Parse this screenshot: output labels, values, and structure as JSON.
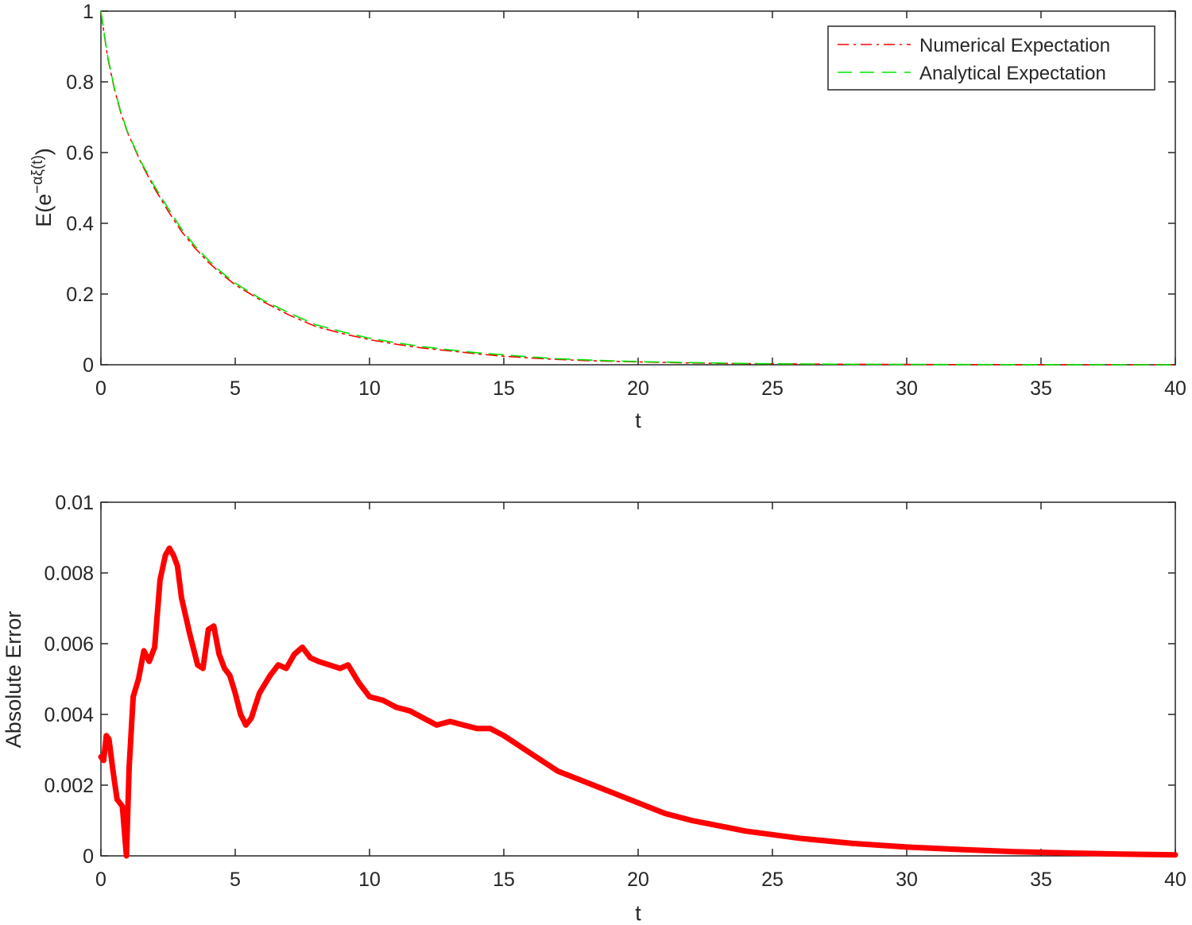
{
  "chart_data": [
    {
      "type": "line",
      "xlabel": "t",
      "ylabel_main": "E(e",
      "ylabel_exponent": "−αξ(t)",
      "ylabel_close": ")",
      "xlim": [
        0,
        40
      ],
      "ylim": [
        0,
        1
      ],
      "xticks": [
        0,
        5,
        10,
        15,
        20,
        25,
        30,
        35,
        40
      ],
      "xtick_labels": [
        "0",
        "5",
        "10",
        "15",
        "20",
        "25",
        "30",
        "35",
        "40"
      ],
      "yticks": [
        0,
        0.2,
        0.4,
        0.6,
        0.8,
        1
      ],
      "ytick_labels": [
        "0",
        "0.2",
        "0.4",
        "0.6",
        "0.8",
        "1"
      ],
      "grid": false,
      "legend_position": "top-right",
      "series": [
        {
          "name": "Numerical Expectation",
          "color": "#ff0000",
          "style": "dash-dot",
          "x": [
            0,
            0.25,
            0.5,
            0.75,
            1,
            1.5,
            2,
            2.5,
            3,
            3.5,
            4,
            4.5,
            5,
            6,
            7,
            8,
            9,
            10,
            11,
            12,
            13,
            14,
            15,
            16,
            17,
            18,
            19,
            20,
            22,
            24,
            26,
            28,
            30,
            32,
            34,
            36,
            38,
            40
          ],
          "values": [
            0.997,
            0.87,
            0.78,
            0.71,
            0.655,
            0.57,
            0.498,
            0.435,
            0.377,
            0.33,
            0.29,
            0.256,
            0.226,
            0.18,
            0.141,
            0.108,
            0.088,
            0.071,
            0.058,
            0.047,
            0.039,
            0.031,
            0.024,
            0.019,
            0.015,
            0.012,
            0.01,
            0.008,
            0.005,
            0.0032,
            0.002,
            0.0013,
            0.0008,
            0.0005,
            0.0003,
            0.0002,
            0.0001,
            0.0001
          ]
        },
        {
          "name": "Analytical Expectation",
          "color": "#00e600",
          "style": "dashed",
          "x": [
            0,
            0.25,
            0.5,
            0.75,
            1,
            1.5,
            2,
            2.5,
            3,
            3.5,
            4,
            4.5,
            5,
            6,
            7,
            8,
            9,
            10,
            11,
            12,
            13,
            14,
            15,
            16,
            17,
            18,
            19,
            20,
            22,
            24,
            26,
            28,
            30,
            32,
            34,
            36,
            38,
            40
          ],
          "values": [
            1.0,
            0.873,
            0.783,
            0.713,
            0.657,
            0.573,
            0.504,
            0.443,
            0.384,
            0.336,
            0.296,
            0.261,
            0.231,
            0.184,
            0.147,
            0.113,
            0.093,
            0.075,
            0.062,
            0.051,
            0.042,
            0.034,
            0.028,
            0.022,
            0.017,
            0.014,
            0.011,
            0.009,
            0.006,
            0.0035,
            0.0022,
            0.0014,
            0.0009,
            0.0006,
            0.0004,
            0.0002,
            0.0001,
            0.0001
          ]
        }
      ]
    },
    {
      "type": "line",
      "xlabel": "t",
      "ylabel": "Absolute Error",
      "xlim": [
        0,
        40
      ],
      "ylim": [
        0,
        0.01
      ],
      "xticks": [
        0,
        5,
        10,
        15,
        20,
        25,
        30,
        35,
        40
      ],
      "xtick_labels": [
        "0",
        "5",
        "10",
        "15",
        "20",
        "25",
        "30",
        "35",
        "40"
      ],
      "yticks": [
        0,
        0.002,
        0.004,
        0.006,
        0.008,
        0.01
      ],
      "ytick_labels": [
        "0",
        "0.002",
        "0.004",
        "0.006",
        "0.008",
        "0.01"
      ],
      "grid": false,
      "series": [
        {
          "color": "#ff0000",
          "style": "solid",
          "x": [
            0,
            0.1,
            0.2,
            0.3,
            0.45,
            0.6,
            0.8,
            0.95,
            1.05,
            1.2,
            1.4,
            1.6,
            1.8,
            2.0,
            2.2,
            2.4,
            2.55,
            2.7,
            2.85,
            3.0,
            3.3,
            3.6,
            3.8,
            4.0,
            4.2,
            4.4,
            4.6,
            4.8,
            5.0,
            5.2,
            5.4,
            5.6,
            5.9,
            6.3,
            6.6,
            6.9,
            7.2,
            7.5,
            7.8,
            8.1,
            8.5,
            8.9,
            9.2,
            9.6,
            10.0,
            10.5,
            11.0,
            11.5,
            12.0,
            12.5,
            13.0,
            13.5,
            14.0,
            14.5,
            15.0,
            16.0,
            17.0,
            18.0,
            19.0,
            20.0,
            21.0,
            22.0,
            24.0,
            26.0,
            28.0,
            30.0,
            32.0,
            34.0,
            36.0,
            38.0,
            40.0
          ],
          "values": [
            0.0028,
            0.0027,
            0.0034,
            0.0033,
            0.0024,
            0.0016,
            0.0014,
            0.0,
            0.0025,
            0.0045,
            0.005,
            0.0058,
            0.0055,
            0.0059,
            0.0078,
            0.0085,
            0.0087,
            0.0085,
            0.0082,
            0.0073,
            0.0063,
            0.0054,
            0.0053,
            0.0064,
            0.0065,
            0.0057,
            0.0053,
            0.0051,
            0.0046,
            0.004,
            0.0037,
            0.0039,
            0.0046,
            0.0051,
            0.0054,
            0.0053,
            0.0057,
            0.0059,
            0.0056,
            0.0055,
            0.0054,
            0.0053,
            0.0054,
            0.0049,
            0.0045,
            0.0044,
            0.0042,
            0.0041,
            0.0039,
            0.0037,
            0.0038,
            0.0037,
            0.0036,
            0.0036,
            0.0034,
            0.0029,
            0.0024,
            0.0021,
            0.0018,
            0.0015,
            0.0012,
            0.001,
            0.0007,
            0.0005,
            0.00035,
            0.00025,
            0.00018,
            0.00012,
            8e-05,
            5e-05,
            3e-05
          ]
        }
      ]
    }
  ]
}
